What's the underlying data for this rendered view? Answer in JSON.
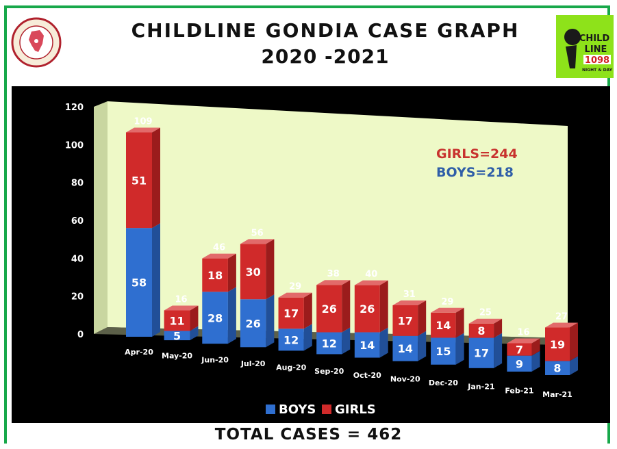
{
  "header": {
    "title_line1": "CHILDLINE  GONDIA  CASE  GRAPH",
    "title_line2": "2020 -2021",
    "left_logo_text": "INDIAN SOCIAL WELFARE SOCIETY · GONDIA",
    "right_logo_line1": "CHILD",
    "right_logo_line2": "LINE",
    "right_logo_number": "1098",
    "right_logo_tagline": "NIGHT & DAY"
  },
  "chart_data": {
    "type": "bar",
    "stacked": true,
    "categories": [
      "Apr-20",
      "May-20",
      "Jun-20",
      "Jul-20",
      "Aug-20",
      "Sep-20",
      "Oct-20",
      "Nov-20",
      "Dec-20",
      "Jan-21",
      "Feb-21",
      "Mar-21"
    ],
    "series": [
      {
        "name": "BOYS",
        "color": "#2f6fd0",
        "values": [
          58,
          5,
          28,
          26,
          12,
          12,
          14,
          14,
          15,
          17,
          9,
          8
        ]
      },
      {
        "name": "GIRLS",
        "color": "#d02a2a",
        "values": [
          51,
          11,
          18,
          30,
          17,
          26,
          26,
          17,
          14,
          8,
          7,
          19
        ]
      }
    ],
    "totals": [
      109,
      16,
      46,
      56,
      29,
      38,
      40,
      31,
      29,
      25,
      16,
      27
    ],
    "ylim": [
      0,
      120
    ],
    "yticks": [
      0,
      20,
      40,
      60,
      80,
      100,
      120
    ],
    "grid": false,
    "legend": {
      "placement": "bottom",
      "items": [
        "BOYS",
        "GIRLS"
      ]
    },
    "annotations": {
      "girls_total": "GIRLS=244",
      "boys_total": "BOYS=218"
    },
    "colors": {
      "wall": "#eef9c7",
      "background": "#000000"
    }
  },
  "footer": {
    "total_label": "TOTAL CASES = 462"
  }
}
